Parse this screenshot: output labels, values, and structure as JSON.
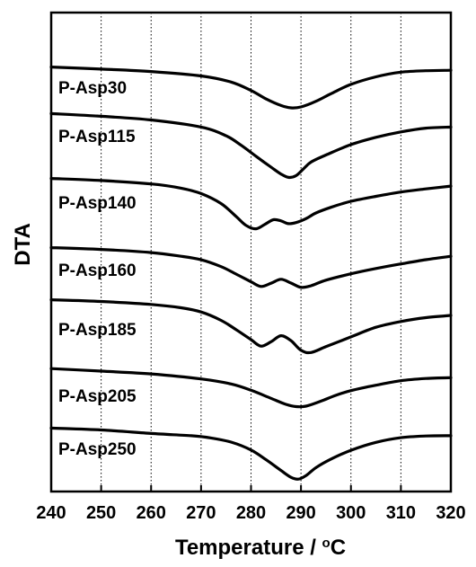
{
  "chart_data": {
    "type": "line",
    "title": "",
    "xlabel": "Temperature / °C",
    "xlabel_parts": [
      "Temperature / ",
      "o",
      "C"
    ],
    "ylabel": "DTA",
    "xlim": [
      240,
      320
    ],
    "xticks": [
      240,
      250,
      260,
      270,
      280,
      290,
      300,
      310,
      320
    ],
    "grid": "vertical dotted",
    "y_ticks_shown": false,
    "series": [
      {
        "name": "P-Asp30",
        "x": [
          240,
          250,
          260,
          270,
          276,
          280,
          283,
          286,
          288,
          290,
          293,
          296,
          300,
          305,
          310,
          315,
          320
        ],
        "y": [
          0.06,
          0.29,
          0.56,
          1.05,
          1.73,
          2.67,
          3.61,
          4.34,
          4.6,
          4.5,
          3.87,
          3.03,
          1.99,
          1.15,
          0.63,
          0.47,
          0.42
        ]
      },
      {
        "name": "P-Asp115",
        "x": [
          240,
          250,
          260,
          270,
          275,
          278,
          281,
          284,
          286,
          287.5,
          289,
          290.5,
          292,
          295,
          300,
          305,
          310,
          315,
          320
        ],
        "y": [
          0.04,
          0.34,
          0.75,
          1.54,
          2.51,
          3.56,
          4.79,
          6.0,
          6.77,
          7.14,
          6.95,
          6.19,
          5.44,
          4.65,
          3.49,
          2.68,
          2.08,
          1.66,
          1.54
        ]
      },
      {
        "name": "P-Asp140",
        "x": [
          240,
          250,
          260,
          266,
          270,
          274,
          277,
          279,
          281,
          283,
          284.5,
          286,
          287.5,
          289,
          291,
          293,
          296,
          300,
          305,
          310,
          315,
          320
        ],
        "y": [
          0.06,
          0.29,
          0.67,
          1.14,
          1.74,
          2.85,
          4.28,
          5.28,
          5.66,
          5.09,
          4.65,
          4.78,
          5.09,
          4.97,
          4.53,
          3.9,
          3.27,
          2.6,
          2.05,
          1.57,
          1.22,
          0.91
        ]
      },
      {
        "name": "P-Asp160",
        "x": [
          240,
          250,
          260,
          266,
          270,
          274,
          277,
          280,
          282,
          284,
          286,
          288,
          290,
          292,
          295,
          300,
          305,
          310,
          315,
          320
        ],
        "y": [
          0.06,
          0.26,
          0.61,
          1.02,
          1.41,
          2.17,
          3.0,
          3.86,
          4.38,
          4.02,
          3.58,
          4.0,
          4.48,
          4.3,
          3.68,
          2.97,
          2.38,
          1.87,
          1.4,
          1.02
        ]
      },
      {
        "name": "P-Asp185",
        "x": [
          240,
          250,
          260,
          266,
          270,
          274,
          277,
          280,
          282,
          284,
          286,
          288,
          290,
          292,
          295,
          300,
          305,
          310,
          315,
          320
        ],
        "y": [
          0.06,
          0.25,
          0.58,
          0.95,
          1.42,
          2.35,
          3.38,
          4.5,
          5.22,
          4.73,
          4.06,
          4.61,
          5.68,
          5.93,
          5.28,
          4.19,
          3.12,
          2.48,
          2.05,
          1.8
        ]
      },
      {
        "name": "P-Asp205",
        "x": [
          240,
          250,
          260,
          270,
          276,
          280,
          284,
          287,
          289,
          291,
          294,
          297,
          300,
          305,
          310,
          315,
          320
        ],
        "y": [
          0.02,
          0.3,
          0.61,
          1.17,
          1.73,
          2.43,
          3.33,
          4.0,
          4.25,
          4.2,
          3.64,
          2.99,
          2.47,
          1.87,
          1.37,
          1.12,
          1.03
        ]
      },
      {
        "name": "P-Asp250",
        "x": [
          240,
          250,
          260,
          268,
          272,
          276,
          280,
          283,
          286,
          288,
          289.5,
          291,
          293,
          296,
          300,
          305,
          310,
          315,
          320
        ],
        "y": [
          0.04,
          0.25,
          0.64,
          0.89,
          1.14,
          1.6,
          2.48,
          3.56,
          4.76,
          5.52,
          5.72,
          5.33,
          4.44,
          3.49,
          2.51,
          1.63,
          1.11,
          0.92,
          0.89
        ]
      }
    ]
  }
}
